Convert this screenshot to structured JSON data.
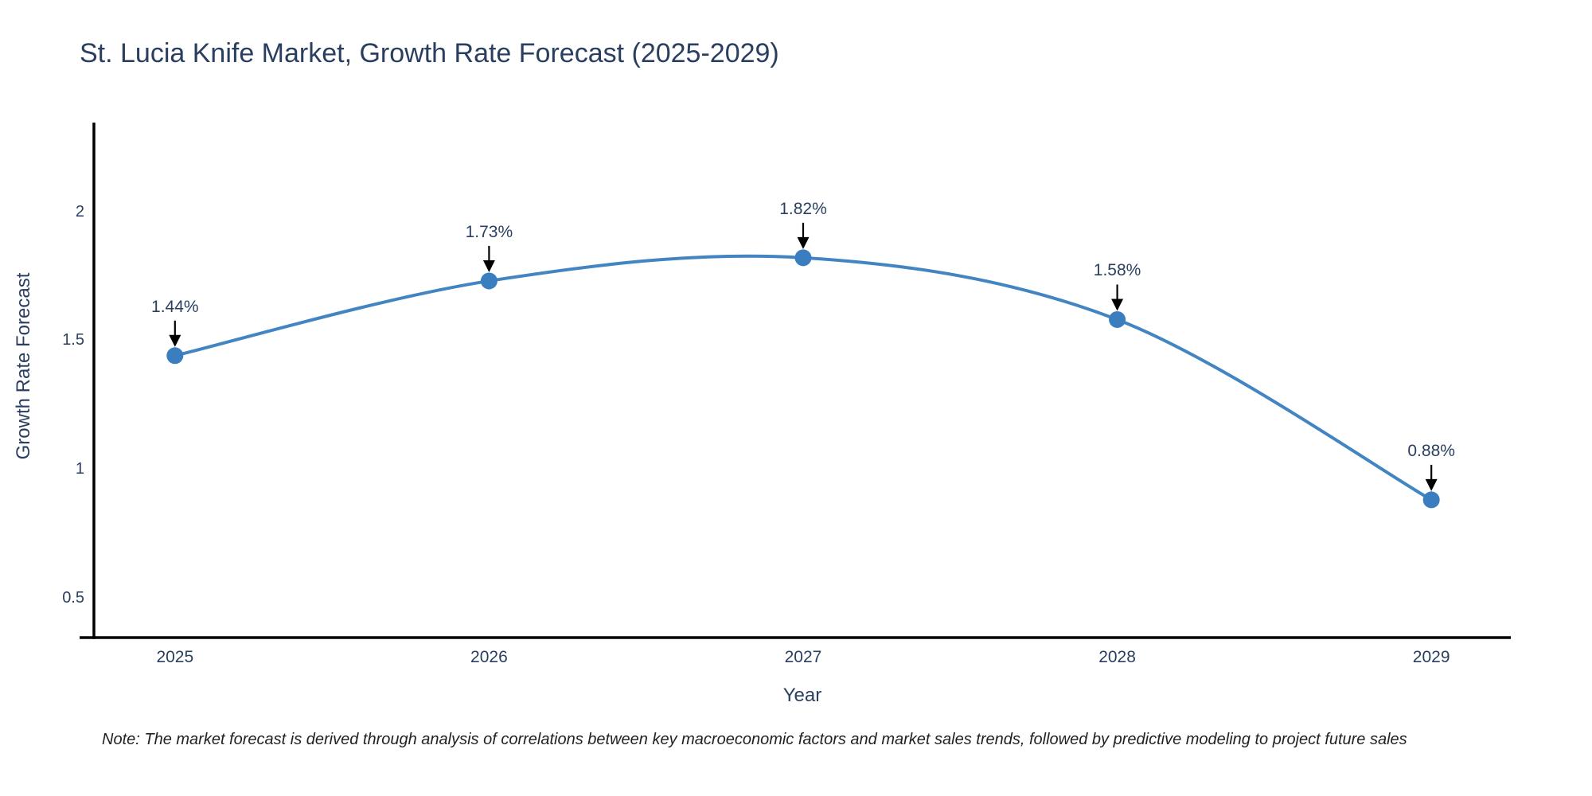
{
  "header": {
    "title": "St. Lucia Knife Market, Growth Rate Forecast (2025-2029)"
  },
  "footer": {
    "note": "Note: The market forecast is derived through analysis of correlations between key macroeconomic factors and market sales trends, followed by predictive modeling to project future sales"
  },
  "colors": {
    "line": "#4285c2",
    "marker": "#3a7ebf",
    "text": "#2a3f5f",
    "axis": "#000000",
    "annotation_arrow": "#000000",
    "note_text": "#222222",
    "background": "#ffffff"
  },
  "chart_data": {
    "type": "line",
    "title": "St. Lucia Knife Market, Growth Rate Forecast (2025-2029)",
    "x": [
      2025,
      2026,
      2027,
      2028,
      2029
    ],
    "series": [
      {
        "name": "Growth Rate Forecast",
        "values": [
          1.44,
          1.73,
          1.82,
          1.58,
          0.88
        ]
      }
    ],
    "point_labels": [
      "1.44%",
      "1.73%",
      "1.82%",
      "1.58%",
      "0.88%"
    ],
    "xlabel": "Year",
    "ylabel": "Growth Rate Forecast",
    "xlim": [
      2024.742,
      2029.253
    ],
    "ylim": [
      0.345,
      2.345
    ],
    "xticks": [
      2025,
      2026,
      2027,
      2028,
      2029
    ],
    "xtick_labels": [
      "2025",
      "2026",
      "2027",
      "2028",
      "2029"
    ],
    "yticks": [
      0.5,
      1,
      1.5,
      2
    ],
    "ytick_labels": [
      "0.5",
      "1",
      "1.5",
      "2"
    ],
    "line_shape": "spline",
    "grid": false,
    "legend": "none",
    "markers": true,
    "annotations": "arrow-down-to-point"
  }
}
